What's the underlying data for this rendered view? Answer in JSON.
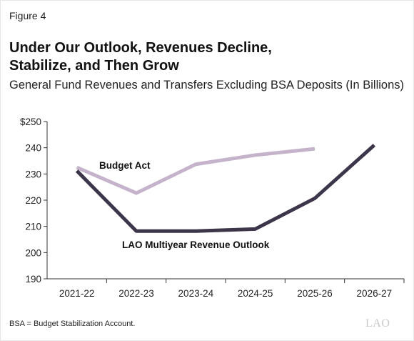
{
  "figure_label": "Figure 4",
  "title_line1": "Under Our Outlook, Revenues Decline,",
  "title_line2": "Stabilize, and Then Grow",
  "subtitle": "General Fund Revenues and Transfers Excluding BSA Deposits (In Billions)",
  "footnote": "BSA = Budget Stabilization Account.",
  "logo_text": "LAO",
  "chart_data": {
    "type": "line",
    "title": "Under Our Outlook, Revenues Decline, Stabilize, and Then Grow",
    "subtitle": "General Fund Revenues and Transfers Excluding BSA Deposits (In Billions)",
    "xlabel": "",
    "ylabel": "",
    "categories": [
      "2021-22",
      "2022-23",
      "2023-24",
      "2024-25",
      "2025-26",
      "2026-27"
    ],
    "ylim": [
      190,
      250
    ],
    "yticks": [
      190,
      200,
      210,
      220,
      230,
      240,
      250
    ],
    "ytick_labels": [
      "190",
      "200",
      "210",
      "220",
      "230",
      "240",
      "$250"
    ],
    "grid": false,
    "legend": "labels on lines",
    "series": [
      {
        "name": "Budget Act",
        "color": "#c5b3cb",
        "values": [
          232.5,
          222.7,
          233.7,
          237.2,
          239.6,
          null
        ]
      },
      {
        "name": "LAO Multiyear Revenue Outlook",
        "color": "#3d3549",
        "values": [
          231.2,
          208.2,
          208.2,
          209.0,
          220.7,
          241.0
        ]
      }
    ]
  }
}
